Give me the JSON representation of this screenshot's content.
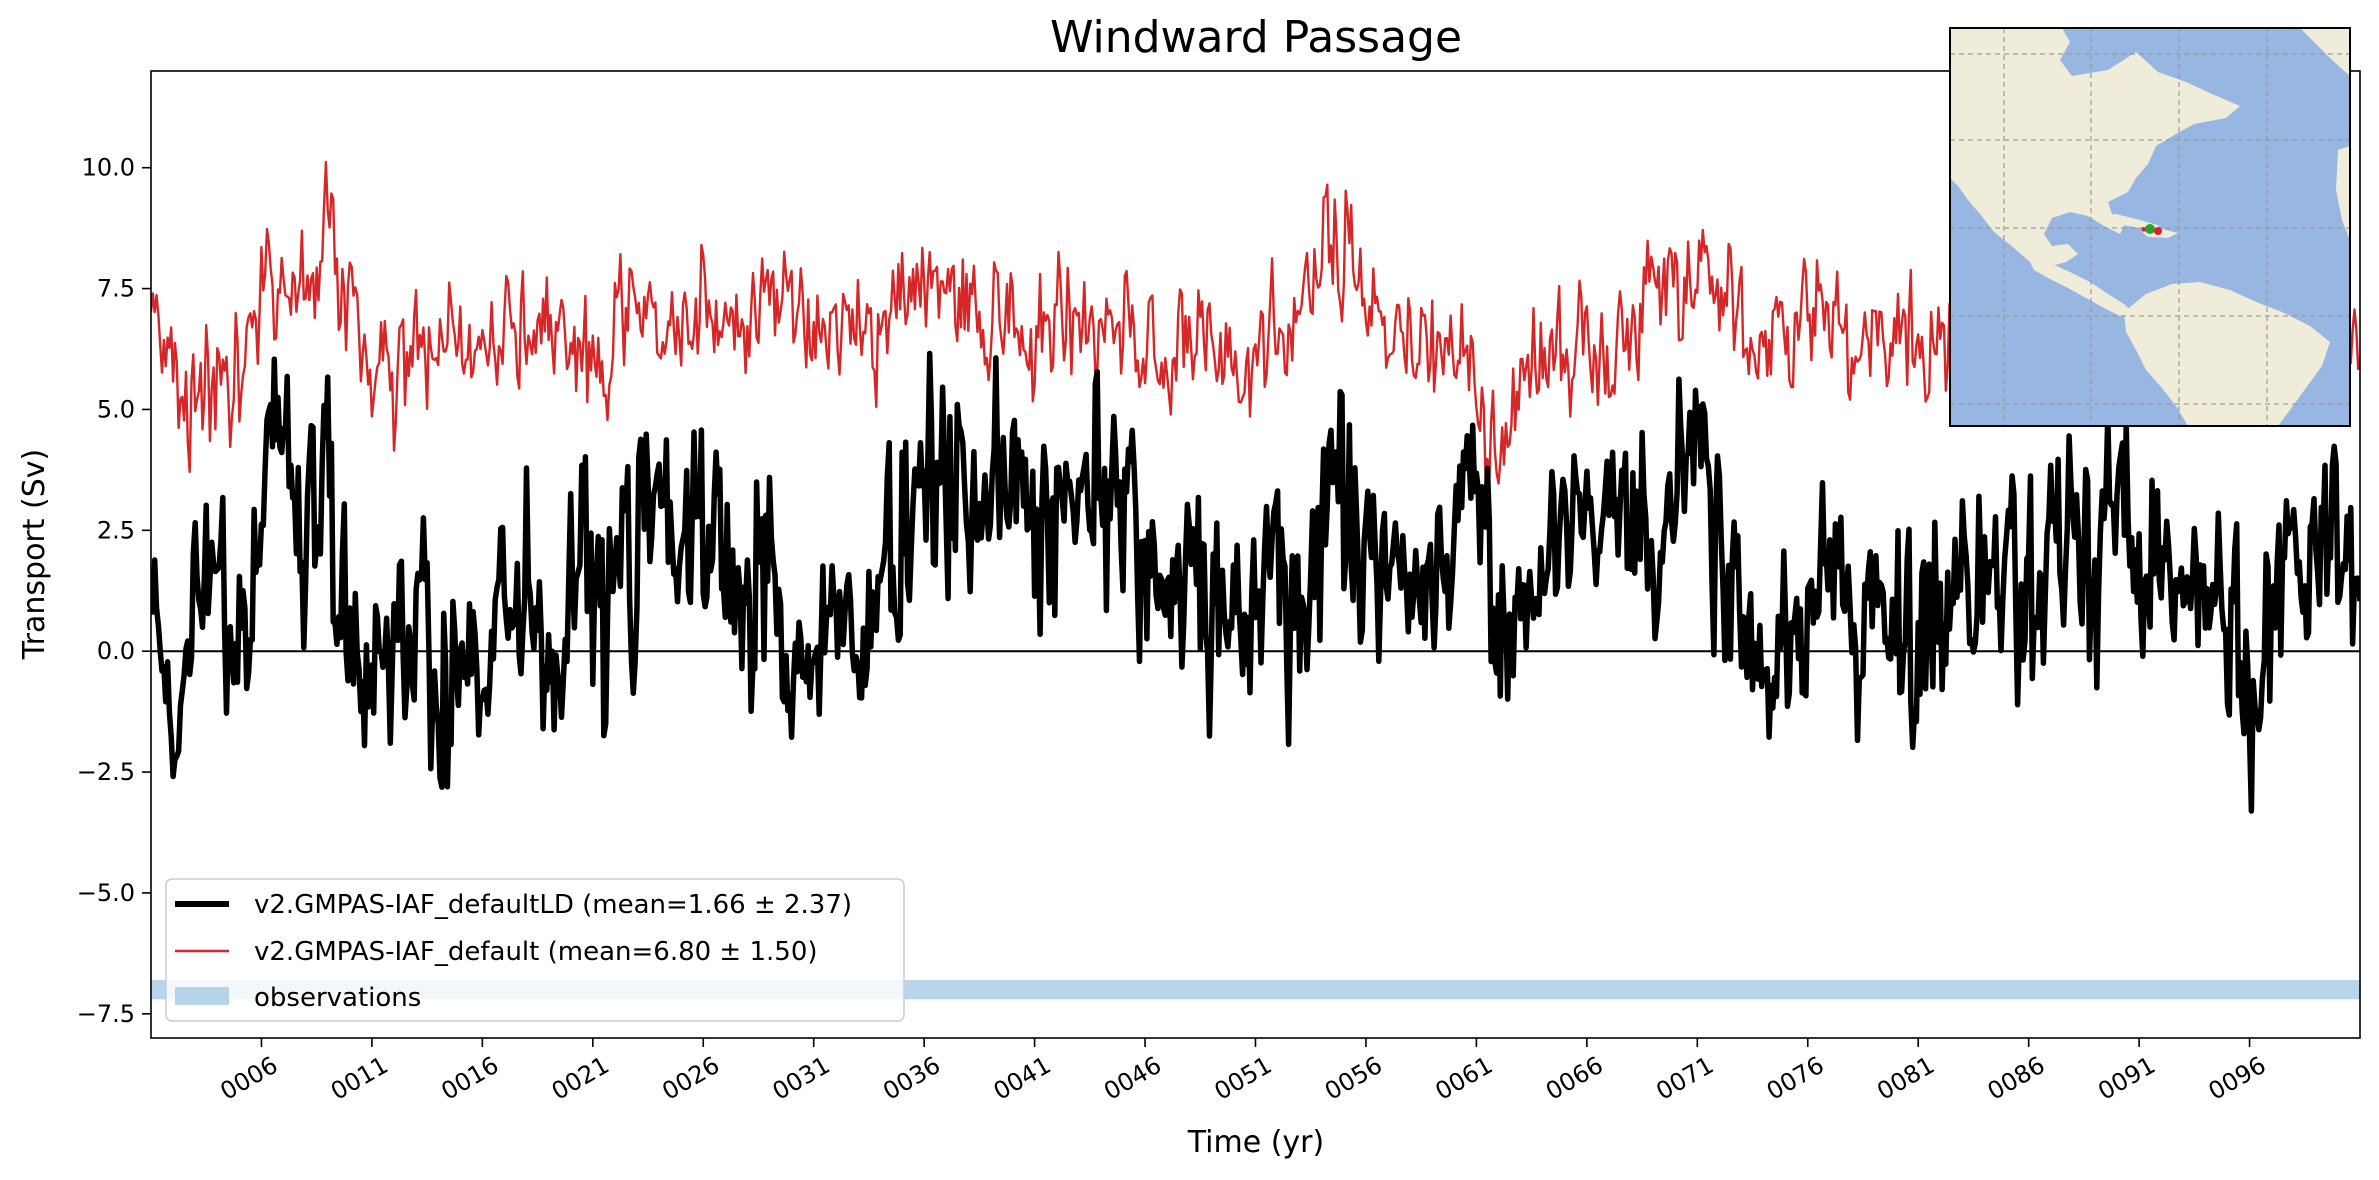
{
  "chart_data": {
    "type": "line",
    "title": "Windward Passage",
    "xlabel": "Time (yr)",
    "ylabel": "Transport (Sv)",
    "xlim": [
      1,
      101
    ],
    "ylim": [
      -8.0,
      12.0
    ],
    "yticks": [
      -7.5,
      -5.0,
      -2.5,
      0.0,
      2.5,
      5.0,
      7.5,
      10.0
    ],
    "ytick_labels": [
      "−7.5",
      "−5.0",
      "−2.5",
      "0.0",
      "2.5",
      "5.0",
      "7.5",
      "10.0"
    ],
    "xticks": [
      6,
      11,
      16,
      21,
      26,
      31,
      36,
      41,
      46,
      51,
      56,
      61,
      66,
      71,
      76,
      81,
      86,
      91,
      96
    ],
    "xtick_labels": [
      "0006",
      "0011",
      "0016",
      "0021",
      "0026",
      "0031",
      "0036",
      "0041",
      "0046",
      "0051",
      "0056",
      "0061",
      "0066",
      "0071",
      "0076",
      "0081",
      "0086",
      "0091",
      "0096"
    ],
    "zero_line": 0.0,
    "observations_band": [
      -7.2,
      -6.8
    ],
    "legend_position": "lower-left",
    "series": [
      {
        "name": "v2.GMPAS-IAF_defaultLD (mean=1.66 ± 2.37)",
        "color": "#000000",
        "x": [
          1,
          2,
          3,
          4,
          5,
          6,
          7,
          8,
          9,
          10,
          11,
          12,
          13,
          14,
          15,
          16,
          17,
          18,
          19,
          20,
          21,
          22,
          23,
          24,
          25,
          26,
          27,
          28,
          29,
          30,
          31,
          32,
          33,
          34,
          35,
          36,
          37,
          38,
          39,
          40,
          41,
          42,
          43,
          44,
          45,
          46,
          47,
          48,
          49,
          50,
          51,
          52,
          53,
          54,
          55,
          56,
          57,
          58,
          59,
          60,
          61,
          62,
          63,
          64,
          65,
          66,
          67,
          68,
          69,
          70,
          71,
          72,
          73,
          74,
          75,
          76,
          77,
          78,
          79,
          80,
          81,
          82,
          83,
          84,
          85,
          86,
          87,
          88,
          89,
          90,
          91,
          92,
          93,
          94,
          95,
          96,
          97,
          98,
          99,
          100,
          101
        ],
        "y": [
          0.8,
          -1.2,
          0.5,
          2.5,
          -1.0,
          2.5,
          4.0,
          1.5,
          3.5,
          -0.5,
          0.5,
          -2.0,
          1.5,
          -1.5,
          0.5,
          -0.5,
          0.5,
          1.0,
          -0.8,
          1.5,
          0.5,
          1.0,
          3.0,
          2.5,
          2.0,
          3.0,
          1.5,
          1.0,
          2.5,
          -1.0,
          -0.5,
          1.5,
          -0.5,
          1.5,
          2.0,
          3.0,
          3.5,
          2.5,
          3.0,
          3.5,
          4.0,
          2.5,
          3.0,
          3.5,
          3.5,
          2.0,
          1.0,
          2.0,
          1.0,
          0.5,
          1.0,
          2.0,
          0.5,
          3.0,
          4.5,
          2.0,
          1.5,
          1.0,
          1.5,
          2.5,
          4.0,
          0.0,
          1.0,
          2.0,
          2.5,
          3.0,
          3.5,
          2.5,
          2.0,
          3.5,
          5.0,
          3.0,
          1.0,
          0.5,
          -0.5,
          0.5,
          1.5,
          0.5,
          2.0,
          0.0,
          0.5,
          1.5,
          2.0,
          1.5,
          2.5,
          1.0,
          2.0,
          2.5,
          1.5,
          3.0,
          2.5,
          1.5,
          2.0,
          1.0,
          0.5,
          -1.5,
          1.0,
          2.0,
          1.5,
          2.0,
          1.5
        ],
        "amplitude": [
          1.8,
          2.0,
          2.5,
          2.8,
          2.4,
          2.5,
          2.8,
          2.6,
          3.2,
          2.6,
          2.8,
          3.4,
          3.0,
          2.7,
          2.4,
          2.6,
          2.4,
          2.8,
          2.4,
          2.6,
          2.8,
          2.8,
          3.4,
          3.2,
          2.8,
          3.0,
          3.0,
          2.6,
          2.6,
          2.2,
          3.0,
          2.8,
          2.4,
          2.6,
          3.2,
          2.9,
          2.6,
          2.4,
          2.8,
          2.6,
          2.8,
          2.6,
          2.4,
          2.8,
          2.6,
          2.8,
          2.6,
          2.6,
          2.4,
          2.6,
          2.6,
          2.6,
          2.8,
          3.4,
          3.8,
          2.6,
          2.4,
          2.6,
          2.4,
          2.8,
          3.4,
          2.8,
          2.6,
          2.4,
          2.2,
          2.0,
          2.2,
          2.4,
          2.2,
          2.4,
          2.2,
          2.8,
          2.6,
          2.4,
          2.6,
          2.4,
          2.6,
          2.4,
          2.6,
          2.8,
          2.8,
          2.6,
          2.4,
          2.6,
          2.6,
          2.6,
          2.4,
          2.6,
          2.8,
          2.8,
          2.6,
          2.4,
          2.4,
          2.2,
          2.4,
          2.8,
          2.8,
          2.4,
          2.4,
          2.4,
          2.2
        ]
      },
      {
        "name": "v2.GMPAS-IAF_default (mean=6.80 ± 1.50)",
        "color": "#d62728",
        "x": [
          1,
          2,
          3,
          4,
          5,
          6,
          7,
          8,
          9,
          10,
          11,
          12,
          13,
          14,
          15,
          16,
          17,
          18,
          19,
          20,
          21,
          22,
          23,
          24,
          25,
          26,
          27,
          28,
          29,
          30,
          31,
          32,
          33,
          34,
          35,
          36,
          37,
          38,
          39,
          40,
          41,
          42,
          43,
          44,
          45,
          46,
          47,
          48,
          49,
          50,
          51,
          52,
          53,
          54,
          55,
          56,
          57,
          58,
          59,
          60,
          61,
          62,
          63,
          64,
          65,
          66,
          67,
          68,
          69,
          70,
          71,
          72,
          73,
          74,
          75,
          76,
          77,
          78,
          79,
          80,
          81,
          82,
          83,
          84,
          85,
          86,
          87,
          88,
          89,
          90,
          91,
          92,
          93,
          94,
          95,
          96,
          97,
          98,
          99,
          100,
          101
        ],
        "y": [
          7.5,
          5.5,
          5.0,
          6.0,
          5.5,
          7.5,
          8.0,
          7.5,
          8.5,
          7.0,
          6.0,
          5.5,
          6.5,
          6.5,
          7.0,
          6.0,
          7.0,
          6.5,
          6.5,
          6.5,
          6.0,
          6.5,
          7.5,
          6.5,
          7.0,
          7.5,
          6.5,
          6.5,
          7.0,
          7.0,
          6.5,
          6.5,
          7.0,
          6.5,
          7.0,
          7.5,
          7.0,
          7.0,
          6.5,
          7.5,
          6.5,
          7.0,
          6.5,
          7.0,
          7.0,
          6.5,
          6.0,
          6.5,
          6.5,
          6.0,
          6.0,
          6.5,
          7.0,
          8.0,
          8.5,
          7.0,
          6.5,
          6.5,
          6.0,
          6.5,
          5.5,
          4.0,
          5.5,
          6.0,
          6.5,
          6.0,
          5.5,
          6.5,
          7.5,
          8.0,
          7.5,
          7.0,
          6.5,
          6.5,
          6.5,
          7.0,
          7.0,
          6.0,
          6.5,
          6.5,
          6.5,
          6.0,
          6.5,
          7.0,
          6.5,
          6.5,
          6.5,
          6.5,
          6.5,
          6.5,
          7.0,
          6.5,
          6.5,
          6.5,
          6.5,
          6.5,
          6.5,
          6.5,
          6.5,
          6.5,
          6.5
        ],
        "amplitude": [
          1.4,
          1.4,
          1.4,
          1.5,
          1.6,
          1.8,
          1.4,
          1.6,
          1.6,
          1.4,
          1.6,
          1.6,
          1.4,
          1.4,
          1.4,
          1.4,
          1.4,
          1.4,
          1.4,
          1.4,
          1.4,
          1.4,
          1.4,
          1.4,
          1.4,
          1.4,
          1.4,
          1.4,
          1.4,
          1.4,
          1.4,
          1.4,
          1.6,
          1.6,
          1.6,
          1.6,
          1.4,
          1.4,
          1.4,
          1.6,
          1.6,
          1.4,
          1.4,
          1.4,
          1.4,
          1.4,
          1.4,
          1.4,
          1.4,
          1.4,
          1.4,
          1.4,
          1.5,
          1.8,
          1.6,
          1.6,
          1.4,
          1.4,
          1.4,
          1.4,
          1.6,
          1.4,
          1.4,
          1.4,
          1.4,
          1.4,
          1.4,
          1.4,
          1.4,
          1.6,
          1.6,
          1.4,
          1.4,
          1.4,
          1.4,
          1.4,
          1.4,
          1.4,
          1.4,
          1.4,
          1.4,
          1.4,
          1.4,
          1.4,
          1.4,
          1.4,
          1.4,
          1.4,
          1.4,
          1.4,
          1.4,
          1.4,
          1.4,
          1.4,
          1.4,
          1.4,
          1.4,
          1.4,
          1.4,
          1.4,
          1.4
        ]
      }
    ],
    "legend": [
      {
        "label": "v2.GMPAS-IAF_defaultLD (mean=1.66 ± 2.37)",
        "color": "#000000",
        "style": "thick-line"
      },
      {
        "label": "v2.GMPAS-IAF_default (mean=6.80 ± 1.50)",
        "color": "#d62728",
        "style": "thin-line"
      },
      {
        "label": "observations",
        "color": "#a6cbe6",
        "style": "band"
      }
    ],
    "inset_map": {
      "position": "top-right",
      "land_color": "#efecd9",
      "ocean_color": "#97b6e1",
      "marker_color": "#2ca02c",
      "section_color": "#d62728"
    }
  }
}
